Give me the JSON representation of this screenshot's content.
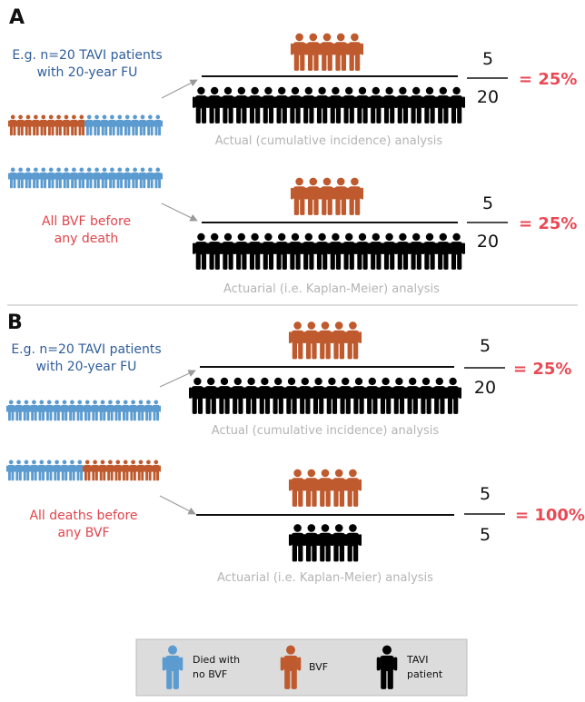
{
  "colors": {
    "died_no_bvf": "#5b9bd0",
    "bvf": "#bf5a2e",
    "tavi_patient": "#000000",
    "red_label": "#e0454c",
    "percent": "#e84a55",
    "gray_label": "#b4b4b4",
    "blue_label": "#2f5d9a",
    "legend_bg": "#dcdcdc"
  },
  "panel_a": {
    "letter": "A",
    "intro_line1": "E.g. n=20 TAVI patients",
    "intro_line2": "with 20-year FU",
    "scenario_line1": "All BVF before",
    "scenario_line2": "any death",
    "rows": [
      {
        "label": "Actual (cumulative incidence) analysis",
        "numerator": "5",
        "denominator": "20",
        "result": "= 25%"
      },
      {
        "label": "Actuarial (i.e. Kaplan-Meier) analysis",
        "numerator": "5",
        "denominator": "20",
        "result": "= 25%"
      }
    ]
  },
  "panel_b": {
    "letter": "B",
    "intro_line1": "E.g. n=20 TAVI patients",
    "intro_line2": "with 20-year FU",
    "scenario_line1": "All deaths before",
    "scenario_line2": "any BVF",
    "rows": [
      {
        "label": "Actual (cumulative incidence) analysis",
        "numerator": "5",
        "denominator": "20",
        "result": "= 25%"
      },
      {
        "label": "Actuarial (i.e. Kaplan-Meier) analysis",
        "numerator": "5",
        "denominator": "5",
        "result": "= 100%"
      }
    ]
  },
  "legend": {
    "items": [
      {
        "line1": "Died with",
        "line2": "no BVF",
        "color": "died_no_bvf"
      },
      {
        "line1": "BVF",
        "line2": "",
        "color": "bvf"
      },
      {
        "line1": "TAVI",
        "line2": "patient",
        "color": "tavi_patient"
      }
    ]
  }
}
